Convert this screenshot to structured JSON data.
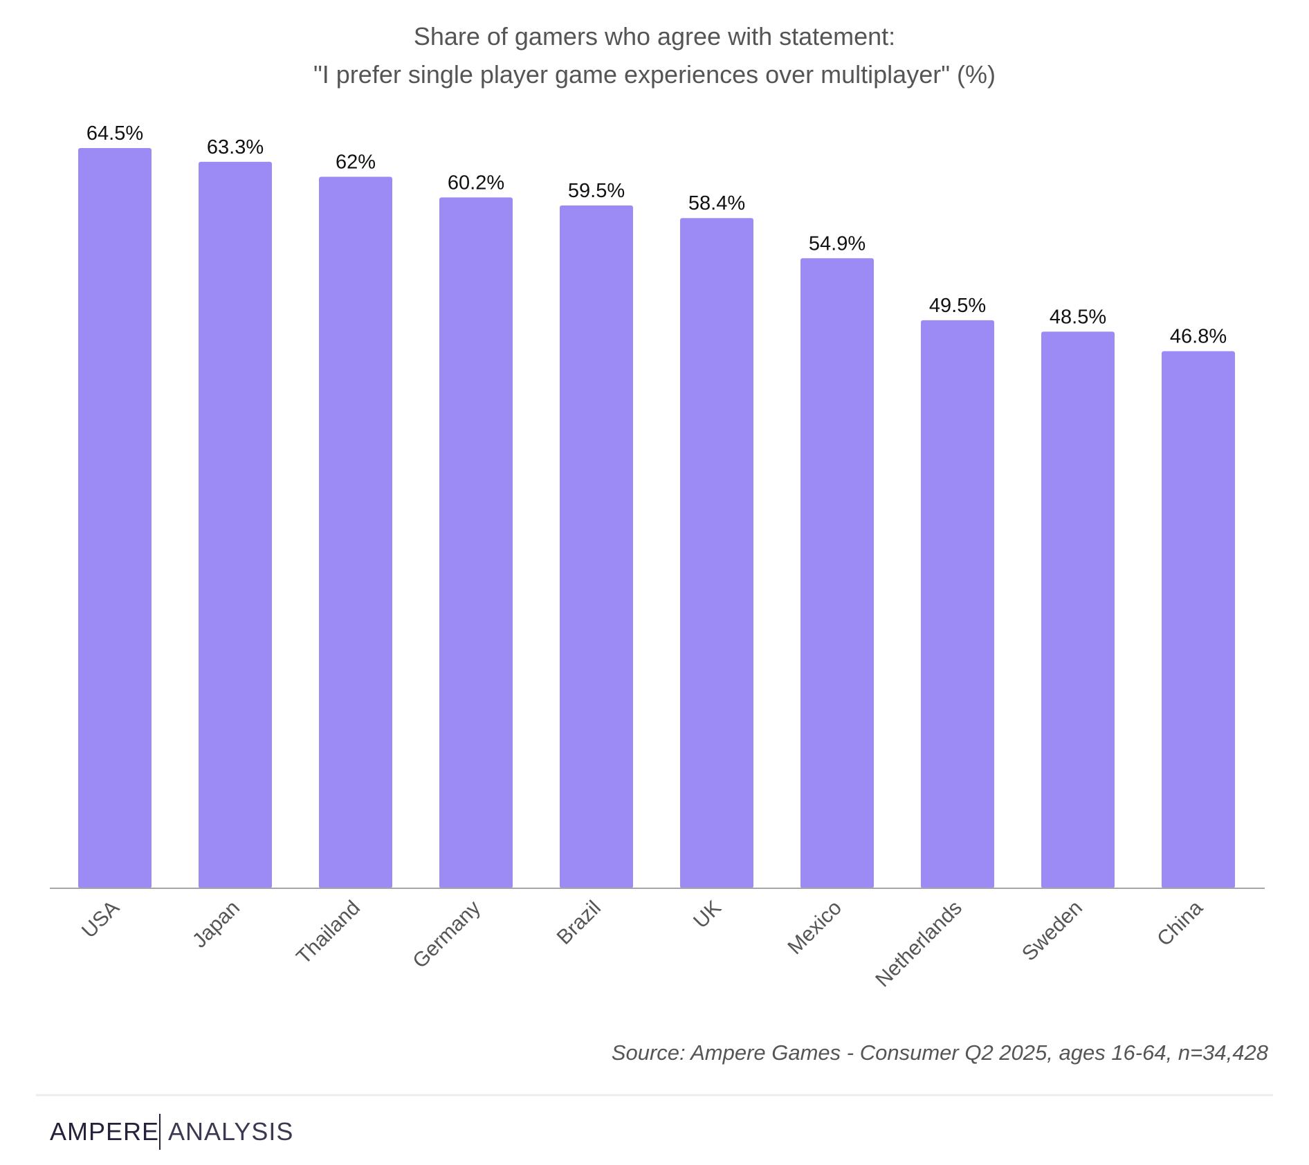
{
  "chart_data": {
    "type": "bar",
    "title": [
      "Share of gamers who agree with statement:",
      "\"I prefer single player game experiences over multiplayer\" (%)"
    ],
    "categories": [
      "USA",
      "Japan",
      "Thailand",
      "Germany",
      "Brazil",
      "UK",
      "Mexico",
      "Netherlands",
      "Sweden",
      "China"
    ],
    "values": [
      64.5,
      63.3,
      62,
      60.2,
      59.5,
      58.4,
      54.9,
      49.5,
      48.5,
      46.8
    ],
    "value_labels": [
      "64.5%",
      "63.3%",
      "62%",
      "60.2%",
      "59.5%",
      "58.4%",
      "54.9%",
      "49.5%",
      "48.5%",
      "46.8%"
    ],
    "xlabel": "",
    "ylabel": "",
    "ylim": [
      0,
      64.5
    ],
    "grid": false,
    "legend": "none",
    "bar_color": "#9d8bf5",
    "axis_color": "#a6a6a6"
  },
  "source": "Source: Ampere Games - Consumer Q2 2025, ages 16-64, n=34,428",
  "brand": {
    "name_primary": "AMPERE",
    "name_secondary": "ANALYSIS",
    "text_color": "#23223a"
  }
}
